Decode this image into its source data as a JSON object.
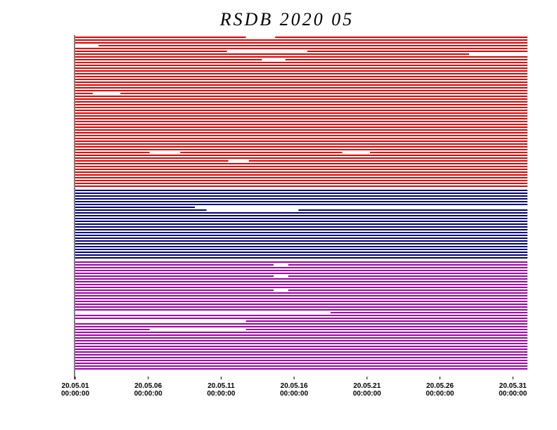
{
  "chart_data": {
    "type": "availability",
    "title": "RSDB  2020  05",
    "xlim": [
      1,
      32
    ],
    "xticks": [
      {
        "value": 1,
        "label": [
          "20.05.01",
          "00:00:00"
        ]
      },
      {
        "value": 6,
        "label": [
          "20.05.06",
          "00:00:00"
        ]
      },
      {
        "value": 11,
        "label": [
          "20.05.11",
          "00:00:00"
        ]
      },
      {
        "value": 16,
        "label": [
          "20.05.16",
          "00:00:00"
        ]
      },
      {
        "value": 21,
        "label": [
          "20.05.21",
          "00:00:00"
        ]
      },
      {
        "value": 26,
        "label": [
          "20.05.26",
          "00:00:00"
        ]
      },
      {
        "value": 31,
        "label": [
          "20.05.31",
          "00:00:00"
        ]
      }
    ],
    "groups": [
      {
        "color": "#e00000",
        "rows": 54,
        "gaps": [
          [
            0,
            12.7,
            14.7
          ],
          [
            3,
            1,
            2.6
          ],
          [
            5,
            11.4,
            16.9
          ],
          [
            6,
            28,
            32
          ],
          [
            8,
            13.8,
            15.4
          ],
          [
            20,
            2.2,
            4.1
          ],
          [
            41,
            6.1,
            8.2
          ],
          [
            41,
            19.3,
            21.2
          ],
          [
            44,
            11.5,
            12.9
          ]
        ]
      },
      {
        "color": "#00007a",
        "rows": 25,
        "gaps": [
          [
            6,
            9.2,
            32
          ],
          [
            7,
            10,
            16.3
          ]
        ]
      },
      {
        "color": "#a000a8",
        "rows": 39,
        "gaps": [
          [
            1,
            14.6,
            15.6
          ],
          [
            5,
            14.6,
            15.6
          ],
          [
            10,
            14.6,
            15.6
          ],
          [
            18,
            1,
            18.5
          ],
          [
            21,
            1,
            12.7
          ],
          [
            24,
            6.1,
            12.7
          ]
        ]
      }
    ]
  }
}
